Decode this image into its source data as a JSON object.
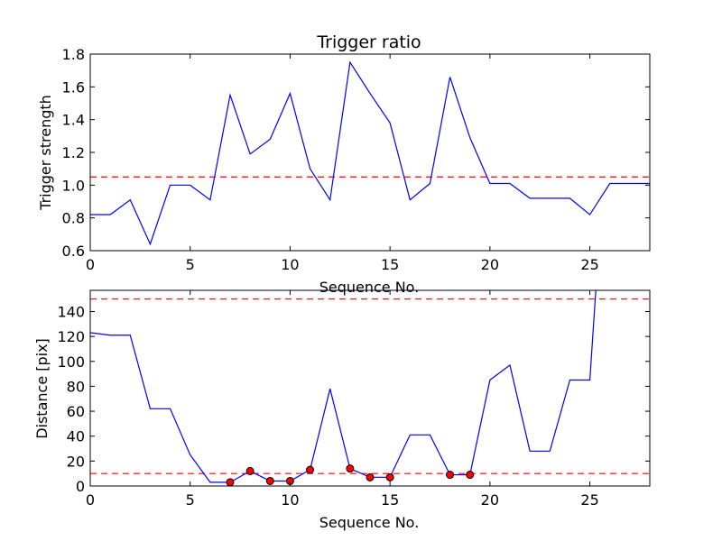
{
  "colors": {
    "series_line": "#0000ff",
    "threshold_line": "#ff0000",
    "marker_fill": "#ff0000",
    "marker_edge": "#000000",
    "axes": "#000000",
    "background": "#ffffff"
  },
  "chart_data": [
    {
      "type": "line",
      "title": "Trigger ratio",
      "xlabel": "Sequence No.",
      "ylabel": "Trigger strength",
      "xlim": [
        0,
        28
      ],
      "ylim": [
        0.6,
        1.8
      ],
      "xticks": [
        0,
        5,
        10,
        15,
        20,
        25
      ],
      "yticks": [
        0.6,
        0.8,
        1.0,
        1.2,
        1.4,
        1.6,
        1.8
      ],
      "xtick_labels": [
        "0",
        "5",
        "10",
        "15",
        "20",
        "25"
      ],
      "ytick_labels": [
        "0.6",
        "0.8",
        "1.0",
        "1.2",
        "1.4",
        "1.6",
        "1.8"
      ],
      "grid": false,
      "series": [
        {
          "x": [
            0,
            1,
            2,
            3,
            4,
            5,
            6,
            7,
            8,
            9,
            10,
            11,
            12,
            13,
            14,
            15,
            16,
            17,
            18,
            19,
            20,
            21,
            22,
            23,
            24,
            25,
            26,
            27,
            28
          ],
          "values": [
            0.82,
            0.82,
            0.91,
            0.64,
            1.0,
            1.0,
            0.91,
            1.55,
            1.19,
            1.28,
            1.56,
            1.1,
            0.91,
            1.75,
            1.56,
            1.38,
            0.91,
            1.01,
            1.66,
            1.29,
            1.01,
            1.01,
            0.92,
            0.92,
            0.92,
            0.82,
            1.01,
            1.01,
            1.01
          ]
        }
      ],
      "threshold": 1.05
    },
    {
      "type": "line",
      "title": "",
      "xlabel": "Sequence No.",
      "ylabel": "Distance [pix]",
      "xlim": [
        0,
        28
      ],
      "ylim": [
        0,
        157
      ],
      "xticks": [
        0,
        5,
        10,
        15,
        20,
        25
      ],
      "yticks": [
        0,
        20,
        40,
        60,
        80,
        100,
        120,
        140
      ],
      "xtick_labels": [
        "0",
        "5",
        "10",
        "15",
        "20",
        "25"
      ],
      "ytick_labels": [
        "0",
        "20",
        "40",
        "60",
        "80",
        "100",
        "120",
        "140"
      ],
      "grid": false,
      "series": [
        {
          "x": [
            0,
            1,
            2,
            3,
            4,
            5,
            6,
            7,
            8,
            9,
            10,
            11,
            12,
            13,
            14,
            15,
            16,
            17,
            18,
            19,
            20,
            21,
            22,
            23,
            24,
            25,
            25.3
          ],
          "values": [
            123,
            121,
            121,
            62,
            62,
            25,
            3,
            3,
            12,
            4,
            4,
            13,
            78,
            14,
            7,
            7,
            41,
            41,
            9,
            9,
            85,
            97,
            28,
            28,
            85,
            85,
            157
          ]
        }
      ],
      "markers": {
        "x": [
          7,
          8,
          9,
          10,
          11,
          13,
          14,
          15,
          18,
          19
        ],
        "y": [
          3,
          12,
          4,
          4,
          13,
          14,
          7,
          7,
          9,
          9
        ]
      },
      "thresholds": [
        150,
        10
      ]
    }
  ]
}
